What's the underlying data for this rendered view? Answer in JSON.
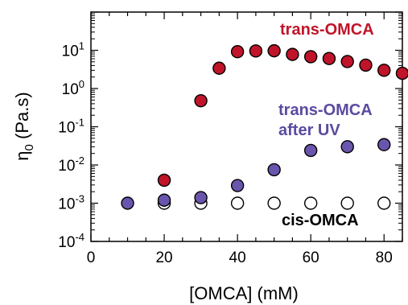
{
  "chart_data": {
    "type": "scatter",
    "xlabel": "[OMCA] (mM)",
    "ylabel": "η",
    "ylabel_sub": "0",
    "ylabel_unit": " (Pa.s)",
    "xlim": [
      0,
      85
    ],
    "ylim": [
      0.0001,
      100
    ],
    "yscale": "log",
    "x_ticks": [
      0,
      20,
      40,
      60,
      80
    ],
    "x_minor_step": 5,
    "y_ticks": [
      {
        "value": 0.0001,
        "base": "10",
        "exp": "-4"
      },
      {
        "value": 0.001,
        "base": "10",
        "exp": "-3"
      },
      {
        "value": 0.01,
        "base": "10",
        "exp": "-2"
      },
      {
        "value": 0.1,
        "base": "10",
        "exp": "-1"
      },
      {
        "value": 1,
        "base": "10",
        "exp": "0"
      },
      {
        "value": 10,
        "base": "10",
        "exp": "1"
      }
    ],
    "grid": false,
    "series": [
      {
        "name": "trans-OMCA",
        "color": "#c0142a",
        "fill": "#c0142a",
        "x": [
          20,
          30,
          35,
          40,
          45,
          50,
          55,
          60,
          65,
          70,
          75,
          80,
          85
        ],
        "y": [
          0.004,
          0.48,
          3.4,
          9.2,
          9.6,
          9.7,
          7.8,
          6.8,
          6.1,
          5.1,
          4.1,
          3.0,
          2.5
        ]
      },
      {
        "name": "trans-OMCA after UV",
        "label_lines": [
          "trans-OMCA",
          "after UV"
        ],
        "color": "#5b4aa0",
        "fill": "#6a55ad",
        "x": [
          10,
          20,
          30,
          40,
          50,
          60,
          70,
          80
        ],
        "y": [
          0.001,
          0.0012,
          0.0014,
          0.0029,
          0.0075,
          0.024,
          0.03,
          0.034
        ]
      },
      {
        "name": "cis-OMCA",
        "color": "#000000",
        "fill": "#ffffff",
        "x": [
          20,
          30,
          40,
          50,
          60,
          70,
          80
        ],
        "y": [
          0.001,
          0.001,
          0.001,
          0.001,
          0.001,
          0.001,
          0.001
        ]
      }
    ]
  }
}
